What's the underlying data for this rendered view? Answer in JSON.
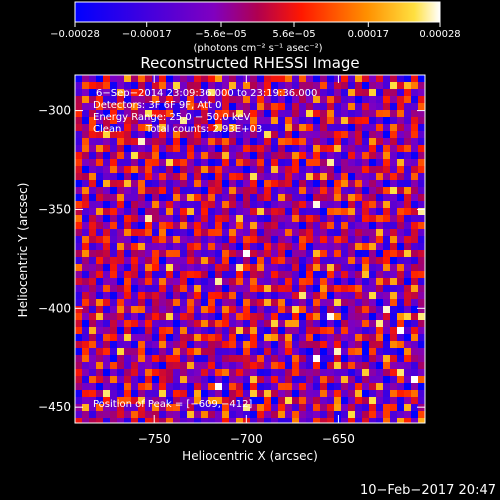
{
  "chart_data": {
    "type": "heatmap",
    "title": "Reconstructed RHESSI Image",
    "xlabel": "Heliocentric X (arcsec)",
    "ylabel": "Heliocentric Y (arcsec)",
    "xlim": [
      -793,
      -603
    ],
    "ylim": [
      -458,
      -282
    ],
    "xticks": [
      -750,
      -700,
      -650
    ],
    "xtick_labels": [
      "−750",
      "−700",
      "−650"
    ],
    "yticks": [
      -300,
      -350,
      -400,
      -450
    ],
    "ytick_labels": [
      "−300",
      "−350",
      "−400",
      "−450"
    ],
    "colorbar": {
      "min": -0.00028,
      "max": 0.00028,
      "ticks": [
        -0.00028,
        -0.00017,
        -5.6e-05,
        5.6e-05,
        0.00017,
        0.00028
      ],
      "tick_labels": [
        "−0.00028",
        "−0.00017",
        "−5.6e−05",
        "5.6e−05",
        "0.00017",
        "0.00028"
      ],
      "label": "(photons cm⁻² s⁻¹ asec⁻²)"
    },
    "peak": {
      "x": -609,
      "y": -412
    },
    "annotations": {
      "time_range": "6−Sep−2014 23:09:36.000 to 23:19:36.000",
      "detectors": "Detectors: 3F 6F 9F, Att 0",
      "energy": "Energy Range: 25.0 − 50.0 keV",
      "algorithm": "Clean",
      "counts": "Total counts: 2.93E+03",
      "peak_text": "Position of Peak = [−609,−412]"
    },
    "grid": false,
    "legend": "colorbar-top"
  },
  "footer": {
    "timestamp": "10−Feb−2017 20:47"
  }
}
